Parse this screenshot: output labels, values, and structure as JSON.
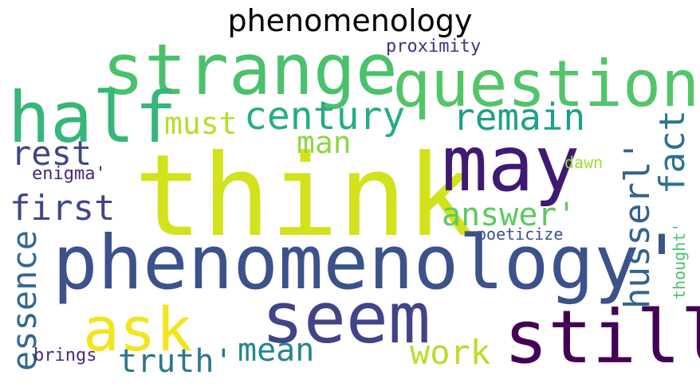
{
  "title": "phenomenology",
  "words": [
    {
      "text": "think",
      "color": "#d2e21b"
    },
    {
      "text": "strange",
      "color": "#4ac16d"
    },
    {
      "text": "question",
      "color": "#52c569"
    },
    {
      "text": "half",
      "color": "#35b779"
    },
    {
      "text": "may",
      "color": "#3e1a72"
    },
    {
      "text": "phenomenology'",
      "color": "#3b528b"
    },
    {
      "text": "seem",
      "color": "#414487"
    },
    {
      "text": "still",
      "color": "#440154"
    },
    {
      "text": "ask",
      "color": "#f2e51d"
    },
    {
      "text": "century",
      "color": "#26ad81"
    },
    {
      "text": "remain",
      "color": "#1f9f88"
    },
    {
      "text": "must",
      "color": "#b5de2b"
    },
    {
      "text": "man",
      "color": "#8ed645"
    },
    {
      "text": "rest",
      "color": "#404588"
    },
    {
      "text": "first",
      "color": "#3f4788"
    },
    {
      "text": "fact",
      "color": "#2c728e"
    },
    {
      "text": "husserl'",
      "color": "#33638d"
    },
    {
      "text": "answer'",
      "color": "#5ec962"
    },
    {
      "text": "essence",
      "color": "#31688e"
    },
    {
      "text": "mean",
      "color": "#25858e"
    },
    {
      "text": "truth'",
      "color": "#2a788e"
    },
    {
      "text": "work",
      "color": "#b8de29"
    },
    {
      "text": "proximity",
      "color": "#46327e"
    },
    {
      "text": "enigma'",
      "color": "#482576"
    },
    {
      "text": "dawn",
      "color": "#a0da39"
    },
    {
      "text": "poeticize",
      "color": "#3b528b"
    },
    {
      "text": "thought'",
      "color": "#4ac16d"
    },
    {
      "text": "brings",
      "color": "#472d7b"
    }
  ]
}
